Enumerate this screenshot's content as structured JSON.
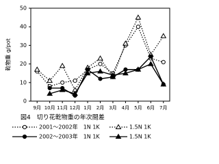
{
  "chart_data": {
    "type": "line",
    "title": "図4　切り花乾物重の年次間差",
    "y_label": "乾物重 g/pot",
    "categories": [
      "9月",
      "10月",
      "11月",
      "12月",
      "1月",
      "2月",
      "3月",
      "4月",
      "5月",
      "6月",
      "7月"
    ],
    "ylim": [
      0,
      50
    ],
    "yticks": [
      0,
      10,
      20,
      30,
      40,
      50
    ],
    "series": [
      {
        "name": "2001～2002年　1N 1K",
        "color": "#000000",
        "dashed": true,
        "marker": "circle",
        "filled": false,
        "values": [
          16,
          8,
          10,
          11,
          17,
          20,
          15,
          30,
          40,
          23,
          21
        ]
      },
      {
        "name": "1.5N 1K",
        "color": "#000000",
        "dashed": true,
        "marker": "triangle",
        "filled": false,
        "values": [
          17,
          11,
          19,
          6,
          18,
          23,
          13,
          31,
          45,
          25,
          35
        ]
      },
      {
        "name": "2002～2003年　1N 1K",
        "color": "#000000",
        "dashed": false,
        "marker": "circle",
        "filled": true,
        "values": [
          null,
          7,
          7,
          3,
          17,
          12,
          13,
          17,
          17,
          24,
          9
        ]
      },
      {
        "name": "1.5N 1K",
        "color": "#000000",
        "dashed": false,
        "marker": "triangle",
        "filled": true,
        "values": [
          null,
          4,
          6,
          4,
          15,
          16,
          14,
          15,
          17,
          20,
          9
        ]
      }
    ]
  }
}
